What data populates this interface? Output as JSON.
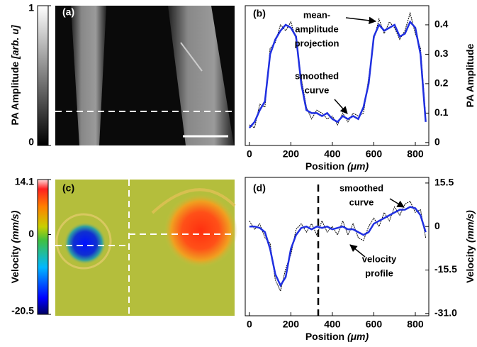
{
  "chart_data": [
    {
      "type": "image",
      "panel_label": "(a)",
      "colorbar_label": "PA Amplitude ",
      "colorbar_unit": "[arb. u]",
      "colorbar_lim": [
        0,
        1
      ],
      "colorbar_ticks": [
        0,
        1
      ]
    },
    {
      "type": "line",
      "panel_label": "(b)",
      "xlabel": "Position ",
      "xunit": "(μm)",
      "ylabel": "PA Amplitude",
      "xlim": [
        -20,
        865
      ],
      "xticks": [
        0,
        200,
        400,
        600,
        800
      ],
      "ylim": [
        -0.01,
        0.465
      ],
      "yticks": [
        0,
        0.1,
        0.2,
        0.3,
        0.4
      ],
      "x": [
        0,
        25,
        50,
        75,
        100,
        125,
        150,
        175,
        200,
        225,
        250,
        275,
        300,
        325,
        350,
        375,
        400,
        425,
        450,
        475,
        500,
        525,
        550,
        575,
        600,
        625,
        650,
        675,
        700,
        725,
        750,
        775,
        800,
        825,
        850
      ],
      "series": [
        {
          "color": "#000000",
          "values": [
            0.06,
            0.05,
            0.13,
            0.12,
            0.32,
            0.34,
            0.4,
            0.38,
            0.41,
            0.35,
            0.22,
            0.12,
            0.08,
            0.11,
            0.1,
            0.08,
            0.09,
            0.06,
            0.1,
            0.07,
            0.1,
            0.09,
            0.1,
            0.22,
            0.35,
            0.42,
            0.37,
            0.41,
            0.39,
            0.35,
            0.38,
            0.44,
            0.37,
            0.32,
            0.09
          ]
        },
        {
          "color": "#1f2fe0",
          "values": [
            0.05,
            0.07,
            0.11,
            0.14,
            0.3,
            0.35,
            0.38,
            0.4,
            0.39,
            0.36,
            0.2,
            0.11,
            0.1,
            0.1,
            0.09,
            0.1,
            0.08,
            0.07,
            0.09,
            0.08,
            0.09,
            0.08,
            0.12,
            0.2,
            0.36,
            0.4,
            0.38,
            0.39,
            0.4,
            0.36,
            0.37,
            0.41,
            0.39,
            0.3,
            0.07
          ]
        }
      ],
      "annotations": [
        {
          "lines": [
            "mean-",
            "amplitude",
            "projection"
          ]
        },
        {
          "lines": [
            "smoothed",
            "curve"
          ]
        }
      ]
    },
    {
      "type": "image",
      "panel_label": "(c)",
      "colorbar_label": "Velocity ",
      "colorbar_unit": "(mm/s)",
      "colorbar_lim": [
        -20.5,
        14.1
      ],
      "colorbar_ticks": [
        -20.5,
        0,
        14.1
      ]
    },
    {
      "type": "line",
      "panel_label": "(d)",
      "xlabel": "Position ",
      "xunit": "(μm)",
      "ylabel": "Velocity ",
      "yunit": "(mm/s)",
      "xlim": [
        -20,
        865
      ],
      "xticks": [
        0,
        200,
        400,
        600,
        800
      ],
      "ylim": [
        -31.8,
        17.5
      ],
      "yticks": [
        {
          "value": -31,
          "label": "-31.0"
        },
        -15.5,
        0,
        15.5
      ],
      "x": [
        0,
        25,
        50,
        75,
        100,
        125,
        150,
        175,
        200,
        225,
        250,
        275,
        300,
        325,
        350,
        375,
        400,
        425,
        450,
        475,
        500,
        525,
        550,
        575,
        600,
        625,
        650,
        675,
        700,
        725,
        750,
        775,
        800,
        825,
        850
      ],
      "series": [
        {
          "color": "#000000",
          "values": [
            2,
            -1,
            1,
            -4,
            -6,
            -19,
            -23,
            -15,
            -10,
            -1,
            1,
            -2,
            1,
            -3,
            2,
            -2,
            0,
            -3,
            2,
            -3,
            1,
            -4,
            -5,
            0,
            3,
            0,
            5,
            2,
            7,
            4,
            8,
            9,
            5,
            6,
            -4
          ]
        },
        {
          "color": "#1f2fe0",
          "values": [
            0,
            0,
            -0.5,
            -2,
            -8,
            -17,
            -21,
            -18,
            -8,
            -3,
            -0.5,
            0,
            -1,
            0,
            -0.5,
            0,
            -1,
            -0.5,
            0,
            -1,
            -1,
            -2,
            -3,
            -2,
            1,
            2,
            3,
            4,
            5,
            6,
            6,
            7,
            6.5,
            4,
            -2
          ]
        }
      ],
      "annotations": [
        {
          "lines": [
            "smoothed",
            "curve"
          ]
        },
        {
          "lines": [
            "velocity",
            "profile"
          ]
        }
      ]
    }
  ]
}
